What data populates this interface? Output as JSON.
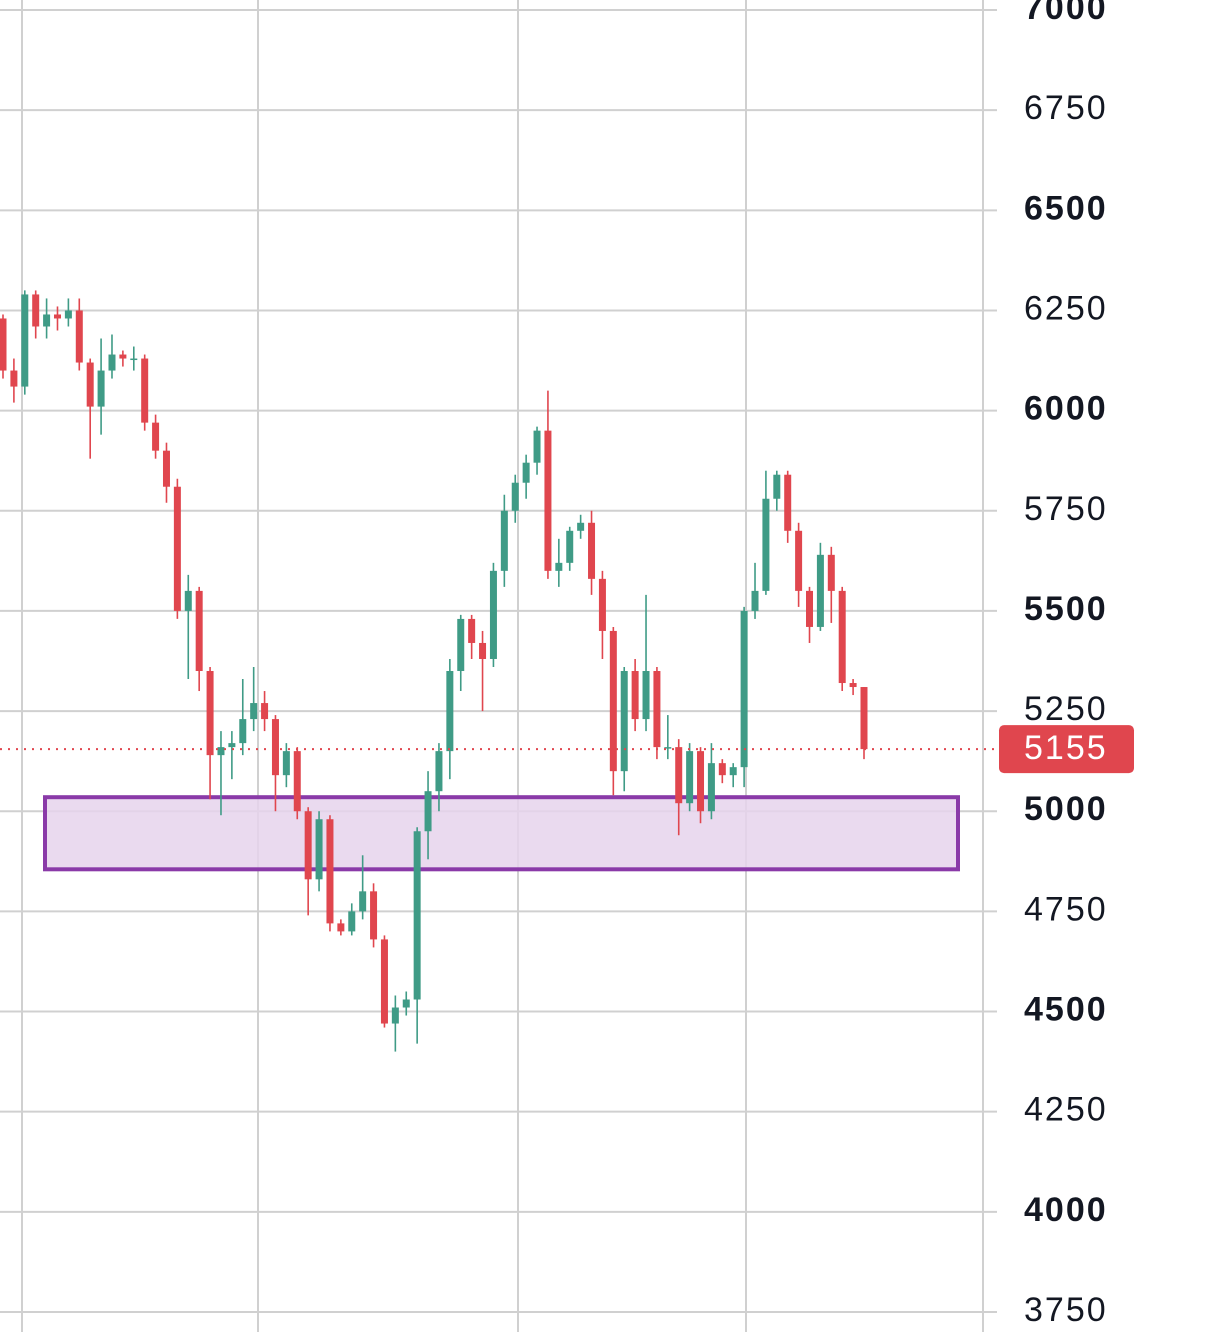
{
  "chart_data": {
    "type": "candlestick",
    "ylim": [
      3700,
      7025
    ],
    "yticks": [
      7000,
      6750,
      6500,
      6250,
      6000,
      5750,
      5500,
      5250,
      5000,
      4750,
      4500,
      4250,
      4000,
      3750
    ],
    "grid": true,
    "up_color": "#3f9b86",
    "down_color": "#e0464e",
    "open": [
      6230,
      6100,
      6060,
      6290,
      6210,
      6240,
      6230,
      6250,
      6120,
      6010,
      6100,
      6140,
      6130,
      6130,
      5970,
      5900,
      5810,
      5500,
      5550,
      5350,
      5140,
      5160,
      5170,
      5230,
      5270,
      5230,
      5090,
      5150,
      5000,
      4830,
      4980,
      4720,
      4700,
      4750,
      4800,
      4680,
      4470,
      4510,
      4530,
      4950,
      5050,
      5150,
      5350,
      5480,
      5420,
      5380,
      5600,
      5750,
      5820,
      5870,
      5950,
      5600,
      5620,
      5700,
      5720,
      5580,
      5450,
      5100,
      5350,
      5230,
      5350,
      5160,
      5160,
      5020,
      5150,
      5000,
      5120,
      5090,
      5110,
      5500,
      5550,
      5780,
      5840,
      5700,
      5550,
      5460,
      5640,
      5550,
      5320,
      5310
    ],
    "high": [
      6240,
      6130,
      6300,
      6300,
      6280,
      6260,
      6280,
      6280,
      6130,
      6180,
      6190,
      6150,
      6160,
      6140,
      5990,
      5920,
      5830,
      5590,
      5560,
      5360,
      5200,
      5200,
      5330,
      5360,
      5300,
      5240,
      5170,
      5160,
      5010,
      5000,
      4990,
      4730,
      4770,
      4890,
      4820,
      4690,
      4540,
      4550,
      4960,
      5100,
      5170,
      5380,
      5490,
      5490,
      5450,
      5620,
      5790,
      5840,
      5890,
      5960,
      6050,
      5680,
      5710,
      5740,
      5750,
      5600,
      5460,
      5360,
      5380,
      5540,
      5360,
      5240,
      5180,
      5170,
      5160,
      5170,
      5130,
      5120,
      5510,
      5620,
      5850,
      5850,
      5850,
      5720,
      5560,
      5670,
      5660,
      5560,
      5330,
      5310
    ],
    "low": [
      6080,
      6020,
      6040,
      6180,
      6180,
      6200,
      6210,
      6100,
      5880,
      5940,
      6080,
      6110,
      6100,
      5950,
      5880,
      5770,
      5480,
      5330,
      5300,
      5030,
      4990,
      5080,
      5140,
      5200,
      5200,
      5000,
      5060,
      4980,
      4740,
      4800,
      4700,
      4690,
      4690,
      4730,
      4660,
      4460,
      4400,
      4490,
      4420,
      4880,
      5000,
      5080,
      5300,
      5380,
      5250,
      5360,
      5560,
      5720,
      5780,
      5840,
      5580,
      5560,
      5600,
      5680,
      5540,
      5380,
      5040,
      5050,
      5200,
      5200,
      5130,
      5130,
      4940,
      5000,
      4970,
      4980,
      5070,
      5060,
      5060,
      5480,
      5540,
      5750,
      5670,
      5510,
      5420,
      5450,
      5470,
      5300,
      5290,
      5130
    ],
    "close": [
      6100,
      6060,
      6290,
      6210,
      6240,
      6230,
      6250,
      6120,
      6010,
      6100,
      6140,
      6130,
      6130,
      5970,
      5900,
      5810,
      5500,
      5550,
      5350,
      5140,
      5160,
      5170,
      5230,
      5270,
      5230,
      5090,
      5150,
      5000,
      4830,
      4980,
      4720,
      4700,
      4750,
      4800,
      4680,
      4470,
      4510,
      4530,
      4950,
      5050,
      5150,
      5350,
      5480,
      5420,
      5380,
      5600,
      5750,
      5820,
      5870,
      5950,
      5600,
      5620,
      5700,
      5720,
      5580,
      5450,
      5100,
      5350,
      5230,
      5350,
      5160,
      5160,
      5020,
      5150,
      5000,
      5120,
      5090,
      5110,
      5500,
      5550,
      5780,
      5840,
      5700,
      5550,
      5460,
      5640,
      5550,
      5320,
      5310,
      5155
    ],
    "last_price": 5155,
    "zone": {
      "top": 5035,
      "bottom": 4855,
      "fill": "#e6d3ec",
      "stroke": "#8a3aa8"
    }
  }
}
